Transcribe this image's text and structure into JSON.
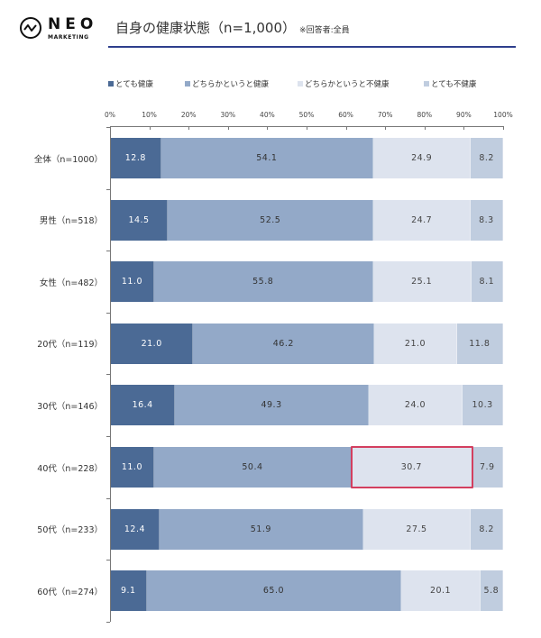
{
  "header": {
    "logo_main": "NEO",
    "logo_sub": "MARKETING",
    "title": "自身の健康状態（n=1,000）",
    "note": "※回答者:全員",
    "rule_color": "#2e3f8c"
  },
  "chart_data": {
    "type": "bar",
    "orientation": "horizontal-stacked-100",
    "title": "自身の健康状態（n=1,000）",
    "subtitle": "※回答者:全員",
    "xlabel": "",
    "ylabel": "",
    "xlim": [
      0,
      100
    ],
    "x_ticks": [
      "0%",
      "10%",
      "20%",
      "30%",
      "40%",
      "50%",
      "60%",
      "70%",
      "80%",
      "90%",
      "100%"
    ],
    "legend_position": "top",
    "grid": false,
    "categories": [
      "全体（n=1000）",
      "男性（n=518）",
      "女性（n=482）",
      "20代（n=119）",
      "30代（n=146）",
      "40代（n=228）",
      "50代（n=233）",
      "60代（n=274）"
    ],
    "series": [
      {
        "name": "とても健康",
        "color": "#4b6a95",
        "text_color": "#ffffff",
        "values": [
          12.8,
          14.5,
          11.0,
          21.0,
          16.4,
          11.0,
          12.4,
          9.1
        ]
      },
      {
        "name": "どちらかというと健康",
        "color": "#93a9c8",
        "text_color": "#333333",
        "values": [
          54.1,
          52.5,
          55.8,
          46.2,
          49.3,
          50.4,
          51.9,
          65.0
        ]
      },
      {
        "name": "どちらかというと不健康",
        "color": "#dde3ee",
        "text_color": "#444444",
        "values": [
          24.9,
          24.7,
          25.1,
          21.0,
          24.0,
          30.7,
          27.5,
          20.1
        ]
      },
      {
        "name": "とても不健康",
        "color": "#c0cddf",
        "text_color": "#444444",
        "values": [
          8.2,
          8.3,
          8.1,
          11.8,
          10.3,
          7.9,
          8.2,
          5.8
        ]
      }
    ],
    "value_labels": [
      [
        "12.8",
        "54.1",
        "24.9",
        "8.2"
      ],
      [
        "14.5",
        "52.5",
        "24.7",
        "8.3"
      ],
      [
        "11.0",
        "55.8",
        "25.1",
        "8.1"
      ],
      [
        "21.0",
        "46.2",
        "21.0",
        "11.8"
      ],
      [
        "16.4",
        "49.3",
        "24.0",
        "10.3"
      ],
      [
        "11.0",
        "50.4",
        "30.7",
        "7.9"
      ],
      [
        "12.4",
        "51.9",
        "27.5",
        "8.2"
      ],
      [
        "9.1",
        "65.0",
        "20.1",
        "5.8"
      ]
    ],
    "annotations": [
      {
        "type": "highlight-box",
        "category": "40代（n=228）",
        "series": "どちらかというと不健康",
        "value": 30.7,
        "color": "#d33f5f"
      }
    ]
  }
}
